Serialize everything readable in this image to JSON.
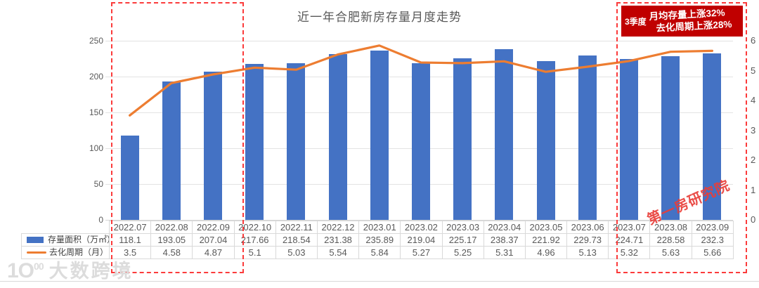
{
  "title": "近一年合肥新房存量月度走势",
  "annotation": {
    "quarter_label": "3季度",
    "line1": "月均存量上涨32%",
    "line2": "去化周期上涨28%",
    "bg_color": "#c00000"
  },
  "watermark": "第一房研究院",
  "logo": {
    "mark": "1Ο",
    "mark_sup": "00",
    "text": "大数跨境"
  },
  "colors": {
    "bar": "#4472C4",
    "line": "#ED7D31",
    "highlight_dash": "#fb3b3b",
    "annotation_bg": "#c00000",
    "axis_text": "#595959"
  },
  "chart_data": {
    "type": "bar",
    "title": "近一年合肥新房存量月度走势",
    "categories": [
      "2022.07",
      "2022.08",
      "2022.09",
      "2022.10",
      "2022.11",
      "2022.12",
      "2023.01",
      "2023.02",
      "2023.03",
      "2023.04",
      "2023.05",
      "2023.06",
      "2023.07",
      "2023.08",
      "2023.09"
    ],
    "series": [
      {
        "name": "存量面积（万㎡）",
        "type": "bar",
        "axis": "left",
        "color": "#4472C4",
        "values": [
          118.1,
          193.05,
          207.04,
          217.66,
          218.54,
          231.38,
          235.89,
          219.04,
          225.17,
          238.37,
          221.92,
          229.73,
          224.71,
          228.58,
          232.3
        ]
      },
      {
        "name": "去化周期（月）",
        "type": "line",
        "axis": "right",
        "color": "#ED7D31",
        "values": [
          3.5,
          4.58,
          4.87,
          5.1,
          5.03,
          5.54,
          5.84,
          5.27,
          5.25,
          5.31,
          4.96,
          5.13,
          5.32,
          5.63,
          5.66
        ]
      }
    ],
    "left_axis": {
      "min": 0,
      "max": 250,
      "step": 50
    },
    "right_axis": {
      "min": 0,
      "max": 6,
      "step": 1
    },
    "legend_position": "table-left",
    "grid": true,
    "data_table": true,
    "highlight_ranges": [
      {
        "from": "2022.07",
        "to": "2022.09"
      },
      {
        "from": "2023.07",
        "to": "2023.09"
      }
    ]
  }
}
